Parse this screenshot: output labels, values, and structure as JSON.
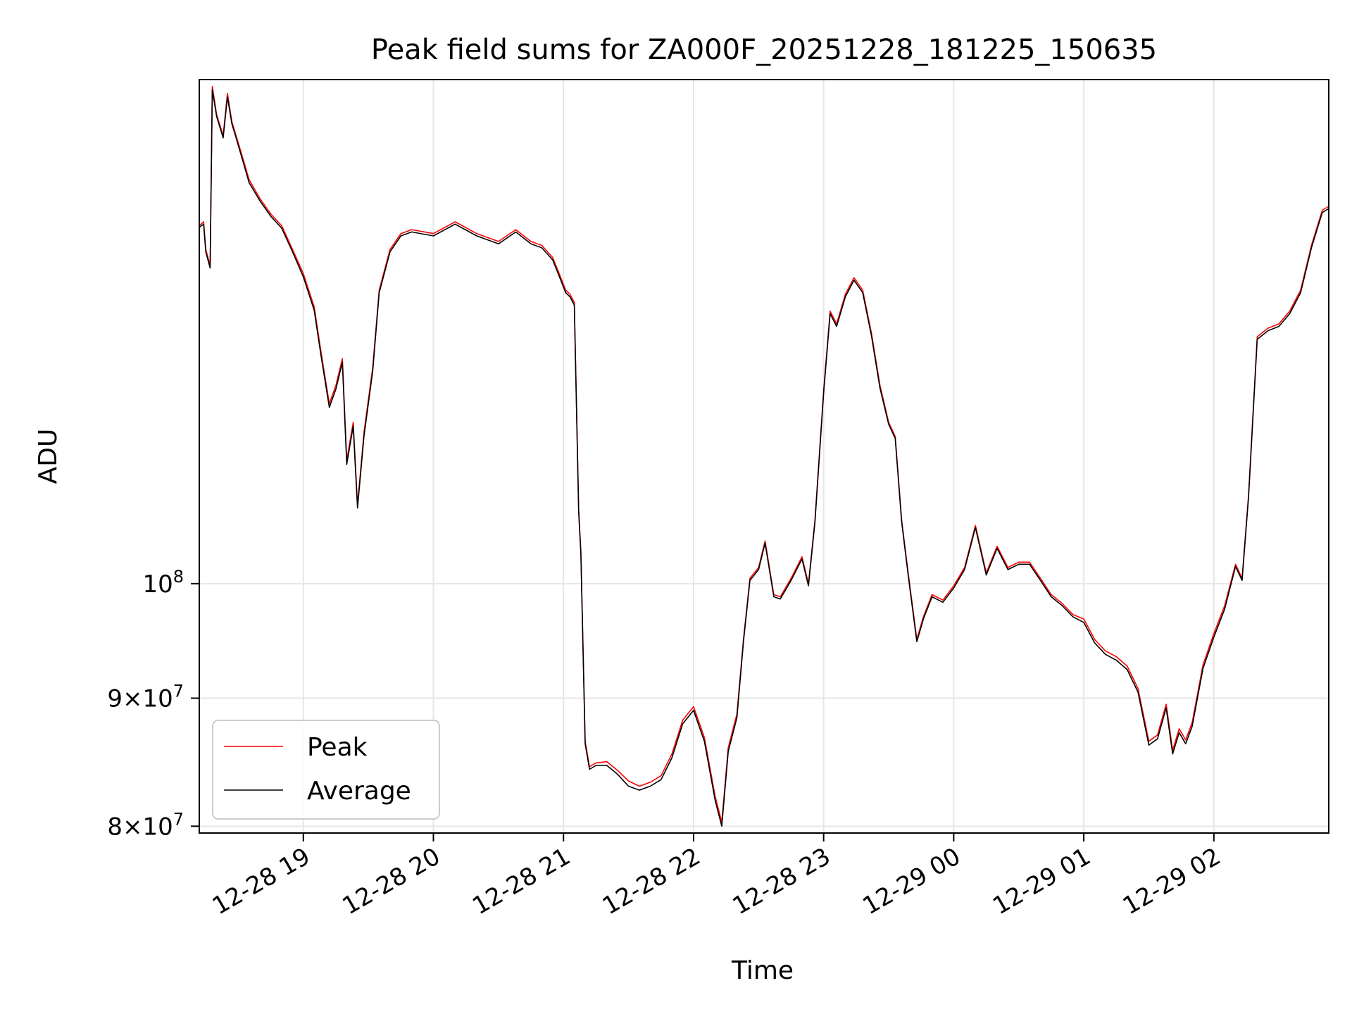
{
  "chart_data": {
    "type": "line",
    "title": "Peak field sums for ZA000F_20251228_181225_150635",
    "xlabel": "Time",
    "ylabel": "ADU",
    "yscale": "log",
    "xlim": [
      "2025-12-28 18:12",
      "2025-12-29 02:53"
    ],
    "ylim": [
      79500000,
      159000000
    ],
    "grid": true,
    "legend_position": "lower-left",
    "x_ticks": [
      "12-28 19",
      "12-28 20",
      "12-28 21",
      "12-28 22",
      "12-28 23",
      "12-29 00",
      "12-29 01",
      "12-29 02"
    ],
    "y_ticks": [
      {
        "value": 80000000,
        "mantissa": "8",
        "exponent": "7"
      },
      {
        "value": 90000000,
        "mantissa": "9",
        "exponent": "7"
      },
      {
        "value": 100000000,
        "mantissa": "",
        "exponent": "8"
      }
    ],
    "x": [
      "2025-12-28 18:12",
      "2025-12-28 18:14",
      "2025-12-28 18:15",
      "2025-12-28 18:17",
      "2025-12-28 18:18",
      "2025-12-28 18:20",
      "2025-12-28 18:23",
      "2025-12-28 18:25",
      "2025-12-28 18:27",
      "2025-12-28 18:29",
      "2025-12-28 18:32",
      "2025-12-28 18:35",
      "2025-12-28 18:40",
      "2025-12-28 18:45",
      "2025-12-28 18:50",
      "2025-12-28 18:55",
      "2025-12-28 19:00",
      "2025-12-28 19:05",
      "2025-12-28 19:08",
      "2025-12-28 19:12",
      "2025-12-28 19:15",
      "2025-12-28 19:18",
      "2025-12-28 19:20",
      "2025-12-28 19:23",
      "2025-12-28 19:25",
      "2025-12-28 19:28",
      "2025-12-28 19:32",
      "2025-12-28 19:35",
      "2025-12-28 19:40",
      "2025-12-28 19:45",
      "2025-12-28 19:50",
      "2025-12-28 20:00",
      "2025-12-28 20:10",
      "2025-12-28 20:20",
      "2025-12-28 20:30",
      "2025-12-28 20:38",
      "2025-12-28 20:45",
      "2025-12-28 20:50",
      "2025-12-28 20:55",
      "2025-12-28 20:58",
      "2025-12-28 21:01",
      "2025-12-28 21:03",
      "2025-12-28 21:05",
      "2025-12-28 21:07",
      "2025-12-28 21:08",
      "2025-12-28 21:10",
      "2025-12-28 21:12",
      "2025-12-28 21:15",
      "2025-12-28 21:20",
      "2025-12-28 21:25",
      "2025-12-28 21:30",
      "2025-12-28 21:35",
      "2025-12-28 21:40",
      "2025-12-28 21:45",
      "2025-12-28 21:50",
      "2025-12-28 21:55",
      "2025-12-28 22:00",
      "2025-12-28 22:05",
      "2025-12-28 22:10",
      "2025-12-28 22:13",
      "2025-12-28 22:16",
      "2025-12-28 22:20",
      "2025-12-28 22:23",
      "2025-12-28 22:26",
      "2025-12-28 22:30",
      "2025-12-28 22:33",
      "2025-12-28 22:37",
      "2025-12-28 22:40",
      "2025-12-28 22:45",
      "2025-12-28 22:50",
      "2025-12-28 22:53",
      "2025-12-28 22:56",
      "2025-12-28 23:00",
      "2025-12-28 23:03",
      "2025-12-28 23:06",
      "2025-12-28 23:10",
      "2025-12-28 23:14",
      "2025-12-28 23:18",
      "2025-12-28 23:22",
      "2025-12-28 23:26",
      "2025-12-28 23:30",
      "2025-12-28 23:33",
      "2025-12-28 23:36",
      "2025-12-28 23:39",
      "2025-12-28 23:43",
      "2025-12-28 23:46",
      "2025-12-28 23:50",
      "2025-12-28 23:55",
      "2025-12-29 00:00",
      "2025-12-29 00:05",
      "2025-12-29 00:10",
      "2025-12-29 00:15",
      "2025-12-29 00:20",
      "2025-12-29 00:25",
      "2025-12-29 00:30",
      "2025-12-29 00:35",
      "2025-12-29 00:40",
      "2025-12-29 00:45",
      "2025-12-29 00:50",
      "2025-12-29 00:55",
      "2025-12-29 01:00",
      "2025-12-29 01:05",
      "2025-12-29 01:10",
      "2025-12-29 01:15",
      "2025-12-29 01:20",
      "2025-12-29 01:25",
      "2025-12-29 01:30",
      "2025-12-29 01:34",
      "2025-12-29 01:38",
      "2025-12-29 01:41",
      "2025-12-29 01:44",
      "2025-12-29 01:47",
      "2025-12-29 01:50",
      "2025-12-29 01:55",
      "2025-12-29 02:00",
      "2025-12-29 02:05",
      "2025-12-29 02:10",
      "2025-12-29 02:13",
      "2025-12-29 02:16",
      "2025-12-29 02:20",
      "2025-12-29 02:25",
      "2025-12-29 02:30",
      "2025-12-29 02:35",
      "2025-12-29 02:40",
      "2025-12-29 02:45",
      "2025-12-29 02:50",
      "2025-12-29 02:53"
    ],
    "series": [
      {
        "name": "Peak",
        "color": "#ff0000",
        "values": [
          139000000,
          139500000,
          136000000,
          134000000,
          158000000,
          154000000,
          151000000,
          157000000,
          153000000,
          151000000,
          148000000,
          145000000,
          142500000,
          140500000,
          139000000,
          136000000,
          133000000,
          129000000,
          124000000,
          118000000,
          120000000,
          123000000,
          112000000,
          116000000,
          107500000,
          115000000,
          122000000,
          131000000,
          136000000,
          138000000,
          138500000,
          138000000,
          139500000,
          138000000,
          137000000,
          138500000,
          137000000,
          136500000,
          135000000,
          133000000,
          131000000,
          130500000,
          129500000,
          107000000,
          103000000,
          86500000,
          84500000,
          84800000,
          84900000,
          84200000,
          83400000,
          83000000,
          83300000,
          83800000,
          85500000,
          88200000,
          89300000,
          86800000,
          82200000,
          80300000,
          86000000,
          88700000,
          95000000,
          100500000,
          101500000,
          104000000,
          99000000,
          98800000,
          100500000,
          102500000,
          100000000,
          106000000,
          119500000,
          128500000,
          127000000,
          130500000,
          132500000,
          131000000,
          126000000,
          120000000,
          116000000,
          114500000,
          106000000,
          101000000,
          95000000,
          97000000,
          99000000,
          98500000,
          99800000,
          101500000,
          105500000,
          101000000,
          103500000,
          101500000,
          102000000,
          102000000,
          100500000,
          99000000,
          98200000,
          97200000,
          96800000,
          95000000,
          94000000,
          93500000,
          92700000,
          90800000,
          86500000,
          87000000,
          89500000,
          85800000,
          87500000,
          86600000,
          88000000,
          92800000,
          95500000,
          98000000,
          101800000,
          100500000,
          108500000,
          125500000,
          126500000,
          127000000,
          128500000,
          131000000,
          136500000,
          141000000,
          141500000
        ]
      },
      {
        "name": "Average",
        "color": "#000000",
        "values": [
          138800000,
          139200000,
          135700000,
          133700000,
          157500000,
          153700000,
          150700000,
          156500000,
          152700000,
          150700000,
          147600000,
          144600000,
          142200000,
          140200000,
          138700000,
          135700000,
          132600000,
          128600000,
          123600000,
          117600000,
          119600000,
          122600000,
          111600000,
          115600000,
          107200000,
          114600000,
          121600000,
          130700000,
          135700000,
          137700000,
          138200000,
          137700000,
          139200000,
          137700000,
          136700000,
          138200000,
          136700000,
          136200000,
          134700000,
          132700000,
          130700000,
          130200000,
          129200000,
          106800000,
          102800000,
          86300000,
          84300000,
          84600000,
          84600000,
          83900000,
          83000000,
          82700000,
          83000000,
          83500000,
          85200000,
          87900000,
          89000000,
          86500000,
          81900000,
          80000000,
          85700000,
          88400000,
          94800000,
          100300000,
          101300000,
          103800000,
          98800000,
          98600000,
          100300000,
          102300000,
          99800000,
          105800000,
          119200000,
          128200000,
          126700000,
          130200000,
          132200000,
          130700000,
          125700000,
          119700000,
          115800000,
          114300000,
          105800000,
          100800000,
          94800000,
          96800000,
          98800000,
          98300000,
          99600000,
          101300000,
          105300000,
          100800000,
          103300000,
          101300000,
          101800000,
          101800000,
          100300000,
          98800000,
          98000000,
          97000000,
          96500000,
          94700000,
          93700000,
          93200000,
          92400000,
          90500000,
          86200000,
          86700000,
          89200000,
          85500000,
          87200000,
          86300000,
          87700000,
          92500000,
          95200000,
          97700000,
          101600000,
          100300000,
          108300000,
          125200000,
          126200000,
          126700000,
          128200000,
          130700000,
          136200000,
          140700000,
          141200000
        ]
      }
    ]
  }
}
